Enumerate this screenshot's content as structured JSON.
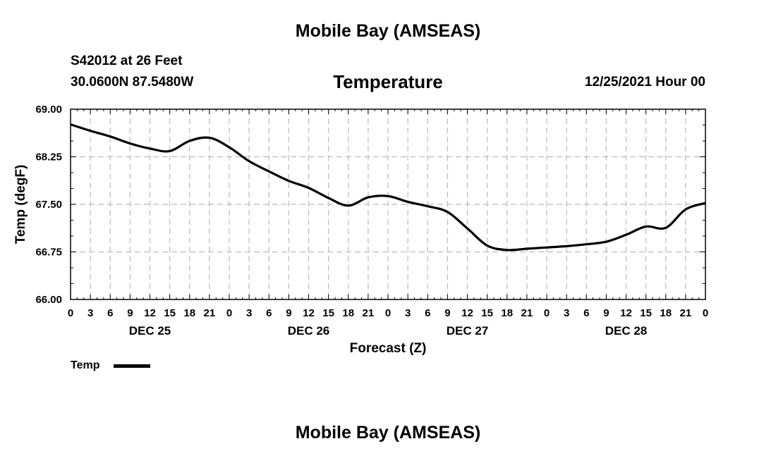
{
  "header": {
    "title": "Mobile Bay (AMSEAS)",
    "station": "S42012 at 26 Feet",
    "coords": "30.0600N  87.5480W",
    "variable": "Temperature",
    "datetime": "12/25/2021 Hour 00"
  },
  "footer": {
    "title": "Mobile Bay (AMSEAS)"
  },
  "legend": {
    "label": "Temp",
    "placement": "bottom-left"
  },
  "colors": {
    "line": "#000000",
    "grid": "#bbbbbb"
  },
  "chart_data": {
    "type": "line",
    "xlabel": "Forecast (Z)",
    "ylabel": "Temp (degF)",
    "ylim": [
      66.0,
      69.0
    ],
    "yticks": [
      "66.00",
      "66.75",
      "67.50",
      "68.25",
      "69.00"
    ],
    "xlim_hours": [
      0,
      96
    ],
    "xtick_labels": [
      "0",
      "3",
      "6",
      "9",
      "12",
      "15",
      "18",
      "21",
      "0",
      "3",
      "6",
      "9",
      "12",
      "15",
      "18",
      "21",
      "0",
      "3",
      "6",
      "9",
      "12",
      "15",
      "18",
      "21",
      "0",
      "3",
      "6",
      "9",
      "12",
      "15",
      "18",
      "21",
      "0"
    ],
    "day_labels": [
      {
        "label": "DEC 25",
        "hour": 12
      },
      {
        "label": "DEC 26",
        "hour": 36
      },
      {
        "label": "DEC 27",
        "hour": 60
      },
      {
        "label": "DEC 28",
        "hour": 84
      }
    ],
    "grid": true,
    "series": [
      {
        "name": "Temp",
        "x": [
          0,
          3,
          6,
          9,
          12,
          15,
          18,
          21,
          24,
          27,
          30,
          33,
          36,
          39,
          42,
          45,
          48,
          51,
          54,
          57,
          60,
          63,
          66,
          69,
          72,
          75,
          78,
          81,
          84,
          87,
          90,
          93,
          96
        ],
        "y": [
          68.76,
          68.66,
          68.57,
          68.46,
          68.38,
          68.34,
          68.5,
          68.55,
          68.4,
          68.18,
          68.02,
          67.87,
          67.76,
          67.6,
          67.48,
          67.61,
          67.63,
          67.54,
          67.47,
          67.38,
          67.12,
          66.85,
          66.78,
          66.8,
          66.82,
          66.84,
          66.87,
          66.91,
          67.02,
          67.15,
          67.13,
          67.42,
          67.52
        ]
      }
    ]
  }
}
